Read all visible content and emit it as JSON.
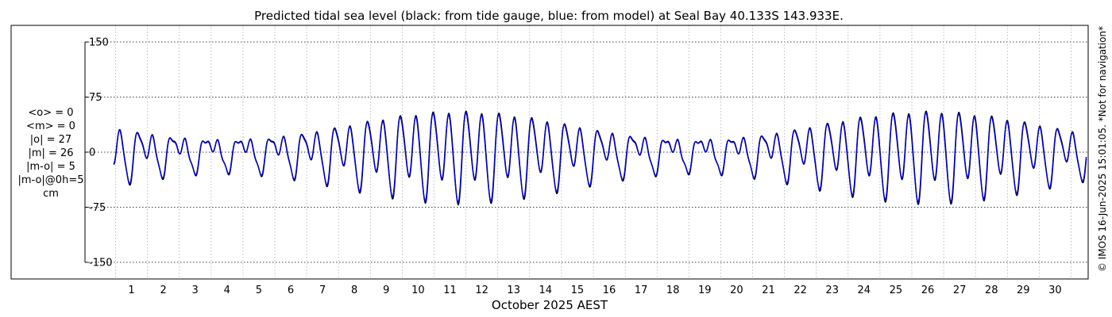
{
  "chart_data": {
    "type": "line",
    "title": "Predicted tidal sea level (black: from tide gauge, blue: from model) at Seal Bay 40.133S 143.933E.",
    "xlabel": "October 2025 AEST",
    "ylabel": "",
    "xlim": [
      0.3,
      31.1
    ],
    "ylim": [
      -150,
      150
    ],
    "y_ticks": [
      "150",
      "75",
      "0",
      "-75",
      "-150"
    ],
    "y_tick_values": [
      150,
      75,
      0,
      -75,
      -150
    ],
    "x_ticks": [
      "1",
      "2",
      "3",
      "4",
      "5",
      "6",
      "7",
      "8",
      "9",
      "10",
      "11",
      "12",
      "13",
      "14",
      "15",
      "16",
      "17",
      "18",
      "19",
      "20",
      "21",
      "22",
      "23",
      "24",
      "25",
      "26",
      "27",
      "28",
      "29",
      "30"
    ],
    "x_tick_values": [
      1,
      2,
      3,
      4,
      5,
      6,
      7,
      8,
      9,
      10,
      11,
      12,
      13,
      14,
      15,
      16,
      17,
      18,
      19,
      20,
      21,
      22,
      23,
      24,
      25,
      26,
      27,
      28,
      29,
      30
    ],
    "grid": true,
    "stats_text": [
      "<o> = 0",
      "<m> = 0",
      "|o| = 27",
      "|m| = 26",
      "|m-o| = 5",
      "|m-o|@0h=5",
      "cm"
    ],
    "credit": "© IMOS 16-Jun-2025 15:01:05. *Not for navigation*",
    "series_colors": {
      "gauge": "#000000",
      "model": "#0000cc"
    },
    "constituents": {
      "semidiurnal_period_days": 0.5175,
      "diurnal_period_days": 1.035,
      "semidiurnal_amp_range": [
        14,
        63
      ],
      "diurnal_amp": 20,
      "spring_centers": [
        11.3,
        26.1
      ],
      "neap_centers": [
        3.9,
        18.7
      ],
      "spring_neap_period_days": 14.8
    },
    "series": [
      {
        "name": "tide gauge",
        "key": "gauge",
        "x_start": 0.4,
        "x_end": 31.05,
        "step": 0.02,
        "amp_scale": 1.04,
        "phase": 0.0
      },
      {
        "name": "model",
        "key": "model",
        "x_start": 0.4,
        "x_end": 31.05,
        "step": 0.02,
        "amp_scale": 1.0,
        "phase": 0.08
      }
    ]
  }
}
